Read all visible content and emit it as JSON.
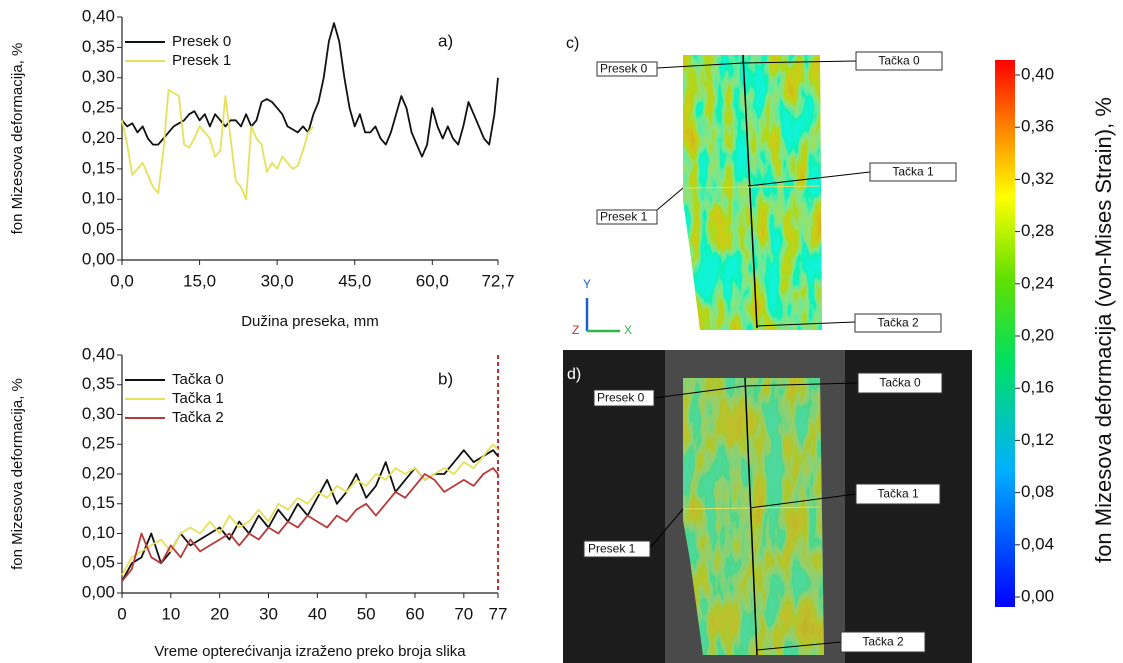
{
  "chart_data": [
    {
      "type": "line",
      "annotation": "a)",
      "ylabel": "fon Mizesova deformacija, %",
      "xlabel": "Dužina preseka, mm",
      "legend": "top-left",
      "xlim": [
        0,
        72.7
      ],
      "ylim": [
        0,
        0.4
      ],
      "xticks": [
        {
          "value": 0,
          "label": "0,0"
        },
        {
          "value": 15,
          "label": "15,0"
        },
        {
          "value": 30,
          "label": "30,0"
        },
        {
          "value": 45,
          "label": "45,0"
        },
        {
          "value": 60,
          "label": "60,0"
        },
        {
          "value": 72.7,
          "label": "72,7"
        }
      ],
      "yticks": [
        {
          "value": 0,
          "label": "0,00"
        },
        {
          "value": 0.05,
          "label": "0,05"
        },
        {
          "value": 0.1,
          "label": "0,10"
        },
        {
          "value": 0.15,
          "label": "0,15"
        },
        {
          "value": 0.2,
          "label": "0,20"
        },
        {
          "value": 0.25,
          "label": "0,25"
        },
        {
          "value": 0.3,
          "label": "0,30"
        },
        {
          "value": 0.35,
          "label": "0,35"
        },
        {
          "value": 0.4,
          "label": "0,40"
        }
      ],
      "series": [
        {
          "name": "Presek 0",
          "color": "#111111",
          "x": [
            0,
            1,
            2,
            3,
            4,
            5,
            6,
            7,
            8,
            9,
            10,
            11,
            12,
            13,
            14,
            15,
            16,
            17,
            18,
            19,
            20,
            21,
            22,
            23,
            24,
            25,
            26,
            27,
            28,
            29,
            30,
            31,
            32,
            33,
            34,
            35,
            36,
            37,
            38,
            39,
            40,
            41,
            42,
            43,
            44,
            45,
            46,
            47,
            48,
            49,
            50,
            51,
            52,
            53,
            54,
            55,
            56,
            57,
            58,
            59,
            60,
            61,
            62,
            63,
            64,
            65,
            66,
            67,
            68,
            69,
            70,
            71,
            72,
            72.7
          ],
          "values": [
            0.23,
            0.22,
            0.225,
            0.21,
            0.22,
            0.2,
            0.19,
            0.19,
            0.2,
            0.21,
            0.22,
            0.225,
            0.23,
            0.24,
            0.245,
            0.23,
            0.24,
            0.22,
            0.24,
            0.23,
            0.22,
            0.23,
            0.23,
            0.22,
            0.24,
            0.22,
            0.23,
            0.26,
            0.265,
            0.26,
            0.25,
            0.24,
            0.22,
            0.215,
            0.21,
            0.22,
            0.21,
            0.24,
            0.26,
            0.3,
            0.36,
            0.39,
            0.36,
            0.3,
            0.25,
            0.22,
            0.24,
            0.21,
            0.21,
            0.22,
            0.2,
            0.19,
            0.21,
            0.24,
            0.27,
            0.25,
            0.21,
            0.19,
            0.17,
            0.19,
            0.25,
            0.22,
            0.2,
            0.22,
            0.2,
            0.19,
            0.22,
            0.26,
            0.24,
            0.22,
            0.2,
            0.19,
            0.24,
            0.3
          ]
        },
        {
          "name": "Presek 1",
          "color": "#e6e05a",
          "x": [
            0,
            1,
            2,
            3,
            4,
            5,
            6,
            7,
            8,
            9,
            10,
            11,
            12,
            13,
            14,
            15,
            16,
            17,
            18,
            19,
            20,
            21,
            22,
            23,
            24,
            25,
            26,
            27,
            28,
            29,
            30,
            31,
            32,
            33,
            34,
            35,
            36,
            37
          ],
          "values": [
            0.23,
            0.19,
            0.14,
            0.15,
            0.16,
            0.14,
            0.12,
            0.11,
            0.18,
            0.28,
            0.275,
            0.27,
            0.19,
            0.185,
            0.2,
            0.22,
            0.21,
            0.2,
            0.17,
            0.18,
            0.27,
            0.2,
            0.13,
            0.12,
            0.1,
            0.22,
            0.2,
            0.19,
            0.145,
            0.16,
            0.15,
            0.17,
            0.16,
            0.15,
            0.155,
            0.18,
            0.21,
            0.22
          ]
        }
      ]
    },
    {
      "type": "line",
      "annotation": "b)",
      "ylabel": "fon Mizesova deformacija, %",
      "xlabel": "Vreme opterećivanja izraženo preko broja slika",
      "legend": "top-left",
      "xlim": [
        0,
        77
      ],
      "ylim": [
        0,
        0.4
      ],
      "xticks": [
        0,
        10,
        20,
        30,
        40,
        50,
        60,
        70,
        77
      ],
      "yticks": [
        {
          "value": 0,
          "label": "0,00"
        },
        {
          "value": 0.05,
          "label": "0,05"
        },
        {
          "value": 0.1,
          "label": "0,10"
        },
        {
          "value": 0.15,
          "label": "0,15"
        },
        {
          "value": 0.2,
          "label": "0,20"
        },
        {
          "value": 0.25,
          "label": "0,25"
        },
        {
          "value": 0.3,
          "label": "0,30"
        },
        {
          "value": 0.35,
          "label": "0,35"
        },
        {
          "value": 0.4,
          "label": "0,40"
        }
      ],
      "x": [
        0,
        2,
        4,
        6,
        8,
        10,
        12,
        14,
        16,
        18,
        20,
        22,
        24,
        26,
        28,
        30,
        32,
        34,
        36,
        38,
        40,
        42,
        44,
        46,
        48,
        50,
        52,
        54,
        56,
        58,
        60,
        62,
        64,
        66,
        68,
        70,
        72,
        74,
        76,
        77
      ],
      "series": [
        {
          "name": "Tačka 0",
          "color": "#111111",
          "values": [
            0.02,
            0.05,
            0.06,
            0.1,
            0.05,
            0.07,
            0.1,
            0.08,
            0.09,
            0.1,
            0.11,
            0.09,
            0.12,
            0.1,
            0.13,
            0.11,
            0.14,
            0.12,
            0.15,
            0.13,
            0.16,
            0.19,
            0.15,
            0.17,
            0.2,
            0.16,
            0.18,
            0.22,
            0.17,
            0.19,
            0.21,
            0.19,
            0.2,
            0.2,
            0.22,
            0.24,
            0.22,
            0.23,
            0.24,
            0.23
          ]
        },
        {
          "name": "Tačka 1",
          "color": "#e6e05a",
          "values": [
            0.03,
            0.06,
            0.07,
            0.08,
            0.09,
            0.07,
            0.1,
            0.11,
            0.1,
            0.12,
            0.1,
            0.13,
            0.11,
            0.12,
            0.14,
            0.12,
            0.15,
            0.14,
            0.16,
            0.15,
            0.17,
            0.16,
            0.18,
            0.17,
            0.19,
            0.18,
            0.2,
            0.19,
            0.21,
            0.2,
            0.21,
            0.19,
            0.2,
            0.21,
            0.2,
            0.22,
            0.21,
            0.23,
            0.25,
            0.24
          ]
        },
        {
          "name": "Tačka 2",
          "color": "#b83a3a",
          "values": [
            0.02,
            0.04,
            0.1,
            0.06,
            0.05,
            0.08,
            0.06,
            0.09,
            0.07,
            0.08,
            0.09,
            0.1,
            0.08,
            0.1,
            0.09,
            0.11,
            0.1,
            0.12,
            0.11,
            0.13,
            0.12,
            0.11,
            0.13,
            0.12,
            0.14,
            0.15,
            0.13,
            0.15,
            0.17,
            0.16,
            0.18,
            0.2,
            0.19,
            0.17,
            0.18,
            0.19,
            0.18,
            0.2,
            0.21,
            0.2
          ]
        }
      ]
    },
    {
      "type": "colorbar",
      "ylabel": "fon Mizesova deformacija (von-Mises Strain), %",
      "ylim": [
        0,
        0.4
      ],
      "yticks": [
        {
          "value": 0,
          "label": "0,00"
        },
        {
          "value": 0.04,
          "label": "0,04"
        },
        {
          "value": 0.08,
          "label": "0,08"
        },
        {
          "value": 0.12,
          "label": "0,12"
        },
        {
          "value": 0.16,
          "label": "0,16"
        },
        {
          "value": 0.2,
          "label": "0,20"
        },
        {
          "value": 0.24,
          "label": "0,24"
        },
        {
          "value": 0.28,
          "label": "0,28"
        },
        {
          "value": 0.32,
          "label": "0,32"
        },
        {
          "value": 0.36,
          "label": "0,36"
        },
        {
          "value": 0.4,
          "label": "0,40"
        }
      ]
    }
  ],
  "panels": [
    {
      "label": "c)",
      "callouts": [
        "Presek 0",
        "Presek 1",
        "Tačka 0",
        "Tačka 1",
        "Tačka 2"
      ],
      "axes": [
        "Y",
        "Z",
        "X"
      ]
    },
    {
      "label": "d)",
      "callouts": [
        "Presek 0",
        "Presek 1",
        "Tačka 0",
        "Tačka 1",
        "Tačka 2"
      ]
    }
  ]
}
